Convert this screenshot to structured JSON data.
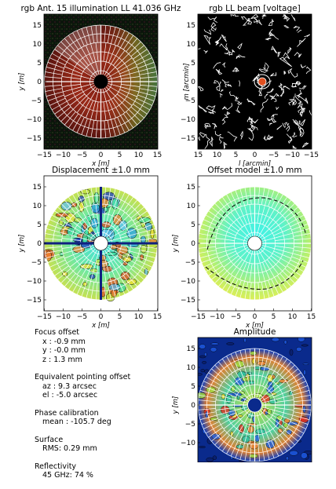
{
  "panels": [
    {
      "id": "illumination",
      "title": "rgb Ant. 15 illumination LL 41.036 GHz",
      "xlabel": "x [m]",
      "ylabel": "y [m]",
      "xticks": [
        "−15",
        "−10",
        "−5",
        "0",
        "5",
        "10",
        "15"
      ],
      "yticks": [
        "15",
        "10",
        "5",
        "0",
        "−5",
        "−10",
        "−15"
      ],
      "bg": "#0c140c"
    },
    {
      "id": "beam",
      "title": "rgb LL beam [voltage]",
      "xlabel": "l [arcmin]",
      "ylabel": "m [arcmin]",
      "xticks": [
        "15",
        "10",
        "5",
        "0",
        "−5",
        "−10",
        "−15"
      ],
      "yticks": [
        "15",
        "10",
        "5",
        "0",
        "−5",
        "−10",
        "−15"
      ],
      "bg": "#000000"
    },
    {
      "id": "displacement",
      "title": "Displacement ±1.0 mm",
      "xlabel": "x [m]",
      "ylabel": "y [m]",
      "xticks": [
        "−15",
        "−10",
        "−5",
        "0",
        "5",
        "10",
        "15"
      ],
      "yticks": [
        "15",
        "10",
        "5",
        "0",
        "−5",
        "−10",
        "−15"
      ],
      "bg": "#ffffff"
    },
    {
      "id": "offset-model",
      "title": "Offset model ±1.0 mm",
      "xlabel": "x [m]",
      "ylabel": "y [m]",
      "xticks": [
        "−15",
        "−10",
        "−5",
        "0",
        "5",
        "10",
        "15"
      ],
      "yticks": [
        "15",
        "10",
        "5",
        "0",
        "−5",
        "−10",
        "−15"
      ],
      "bg": "#ffffff"
    },
    {
      "id": "amplitude",
      "title": "Amplitude",
      "xlabel": "",
      "ylabel": "y [m]",
      "xticks": [],
      "yticks": [
        "15",
        "10",
        "5",
        "0",
        "−5",
        "−10"
      ],
      "bg": "#0a2a8c"
    }
  ],
  "stats": {
    "focus": {
      "head": "Focus offset",
      "x": "x : -0.9 mm",
      "y": "y : -0.0 mm",
      "z": "z : 1.3 mm"
    },
    "pointing": {
      "head": "Equivalent pointing offset",
      "az": "az : 9.3 arcsec",
      "el": "el : -5.0 arcsec"
    },
    "phase": {
      "head": "Phase calibration",
      "mean": "mean : -105.7 deg"
    },
    "surface": {
      "head": "Surface",
      "rms": "RMS: 0.29 mm"
    },
    "reflectivity": {
      "head": "Reflectivity",
      "value": "45 GHz: 74 %"
    }
  },
  "chart_data": [
    {
      "type": "heatmap",
      "title": "rgb Ant. 15 illumination LL 41.036 GHz",
      "xlabel": "x [m]",
      "ylabel": "y [m]",
      "xlim": [
        -15,
        15
      ],
      "ylim": [
        -15,
        15
      ],
      "dish_radius_m": 12.5,
      "blockage_radius_m": 1.5
    },
    {
      "type": "heatmap",
      "title": "rgb LL beam [voltage]",
      "xlabel": "l [arcmin]",
      "ylabel": "m [arcmin]",
      "xlim": [
        17,
        -17
      ],
      "ylim": [
        -17,
        17
      ]
    },
    {
      "type": "heatmap",
      "title": "Displacement ±1.0 mm",
      "xlabel": "x [m]",
      "ylabel": "y [m]",
      "xlim": [
        -15,
        15
      ],
      "ylim": [
        -15,
        15
      ],
      "range_mm": 1.0
    },
    {
      "type": "heatmap",
      "title": "Offset model ±1.0 mm",
      "xlabel": "x [m]",
      "ylabel": "y [m]",
      "xlim": [
        -15,
        15
      ],
      "ylim": [
        -15,
        15
      ],
      "range_mm": 1.0
    },
    {
      "type": "heatmap",
      "title": "Amplitude",
      "ylabel": "y [m]",
      "xlim": [
        -15,
        15
      ],
      "ylim": [
        -15,
        15
      ]
    }
  ],
  "colors": {
    "panel_frame": "#000000",
    "grid_lines": "#ffffff",
    "contour": "#000000"
  }
}
